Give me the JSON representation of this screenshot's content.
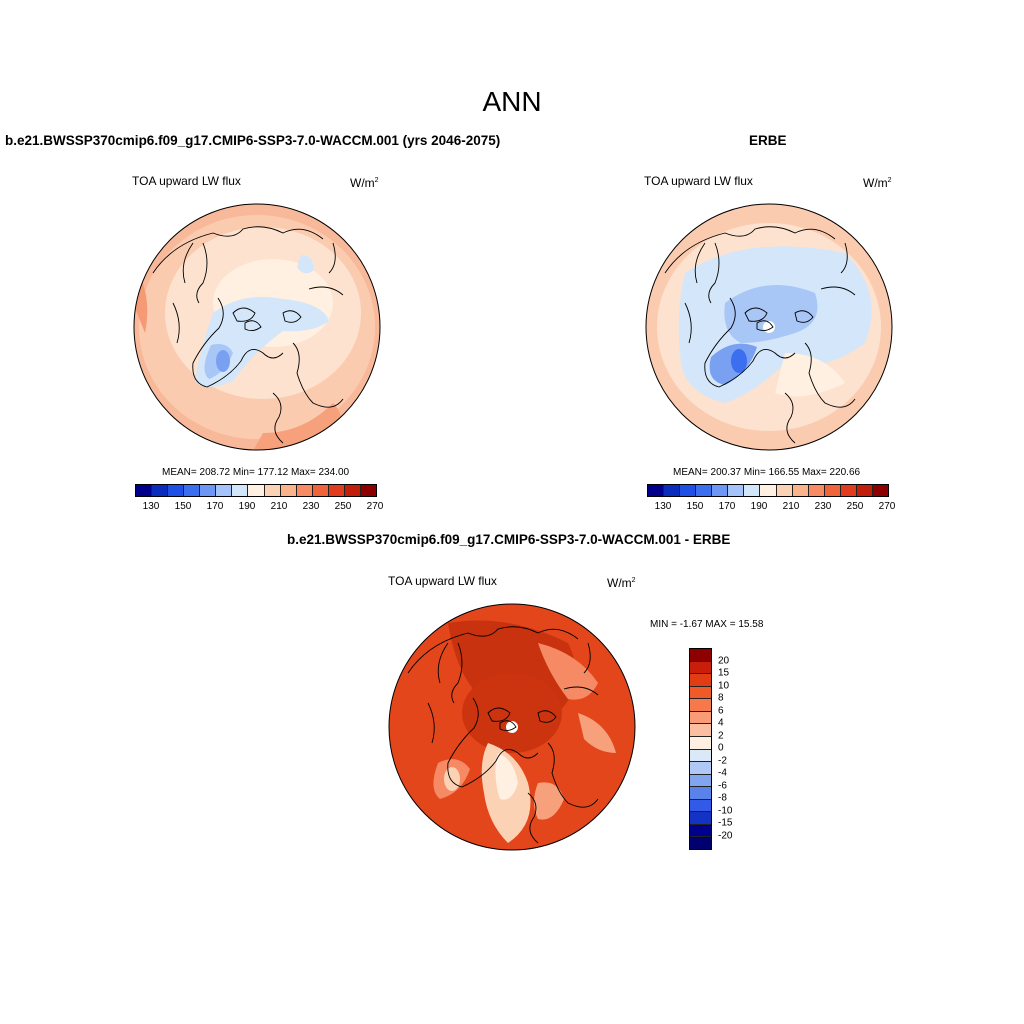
{
  "title": "ANN",
  "panel_top_left": {
    "case_title": "b.e21.BWSSP370cmip6.f09_g17.CMIP6-SSP3-7.0-WACCM.001 (yrs 2046-2075)",
    "variable": "TOA upward LW flux",
    "units_base": "W/m",
    "units_exp": "2",
    "stats": "MEAN= 208.72  Min= 177.12  Max= 234.00"
  },
  "panel_top_right": {
    "case_title": "ERBE",
    "variable": "TOA upward LW flux",
    "units_base": "W/m",
    "units_exp": "2",
    "stats": "MEAN= 200.37  Min= 166.55  Max= 220.66"
  },
  "panel_bottom": {
    "case_title": "b.e21.BWSSP370cmip6.f09_g17.CMIP6-SSP3-7.0-WACCM.001 - ERBE",
    "variable": "TOA upward LW flux",
    "units_base": "W/m",
    "units_exp": "2",
    "stats": "MIN =  -1.67 MAX =  15.58"
  },
  "chart_data": [
    {
      "type": "heatmap",
      "projection": "north-polar-stereographic",
      "title": "b.e21.BWSSP370cmip6.f09_g17.CMIP6-SSP3-7.0-WACCM.001 (yrs 2046-2075)",
      "variable": "TOA upward LW flux",
      "units": "W/m2",
      "mean": 208.72,
      "min": 177.12,
      "max": 234.0,
      "colorbar_ticks": [
        "130",
        "150",
        "170",
        "190",
        "210",
        "230",
        "250",
        "270"
      ],
      "colorbar_colors": [
        "#00008a",
        "#0a2dbe",
        "#1e50e6",
        "#3c6ef0",
        "#6e96f5",
        "#a5c3fa",
        "#d2e6fa",
        "#fff0e1",
        "#fcd2b4",
        "#fab48c",
        "#f78c64",
        "#f0643c",
        "#e13c1e",
        "#c31e0a",
        "#8c0000"
      ]
    },
    {
      "type": "heatmap",
      "projection": "north-polar-stereographic",
      "title": "ERBE",
      "variable": "TOA upward LW flux",
      "units": "W/m2",
      "mean": 200.37,
      "min": 166.55,
      "max": 220.66,
      "colorbar_ticks": [
        "130",
        "150",
        "170",
        "190",
        "210",
        "230",
        "250",
        "270"
      ],
      "colorbar_colors": [
        "#00008a",
        "#0a2dbe",
        "#1e50e6",
        "#3c6ef0",
        "#6e96f5",
        "#a5c3fa",
        "#d2e6fa",
        "#fff0e1",
        "#fcd2b4",
        "#fab48c",
        "#f78c64",
        "#f0643c",
        "#e13c1e",
        "#c31e0a",
        "#8c0000"
      ]
    },
    {
      "type": "heatmap",
      "projection": "north-polar-stereographic",
      "title": "b.e21.BWSSP370cmip6.f09_g17.CMIP6-SSP3-7.0-WACCM.001 - ERBE",
      "variable": "TOA upward LW flux",
      "units": "W/m2",
      "min": -1.67,
      "max": 15.58,
      "colorbar_ticks": [
        "20",
        "15",
        "10",
        "8",
        "6",
        "4",
        "2",
        "0",
        "-2",
        "-4",
        "-6",
        "-8",
        "-10",
        "-15",
        "-20"
      ],
      "colorbar_colors": [
        "#8c0000",
        "#c81e0a",
        "#e13c14",
        "#f05a28",
        "#f7784b",
        "#fa9b78",
        "#fcbea0",
        "#fff0e1",
        "#dbe8f8",
        "#afc8f5",
        "#82a5f0",
        "#5a82eb",
        "#325ae6",
        "#1432c3",
        "#00008c",
        "#00006e"
      ]
    }
  ]
}
